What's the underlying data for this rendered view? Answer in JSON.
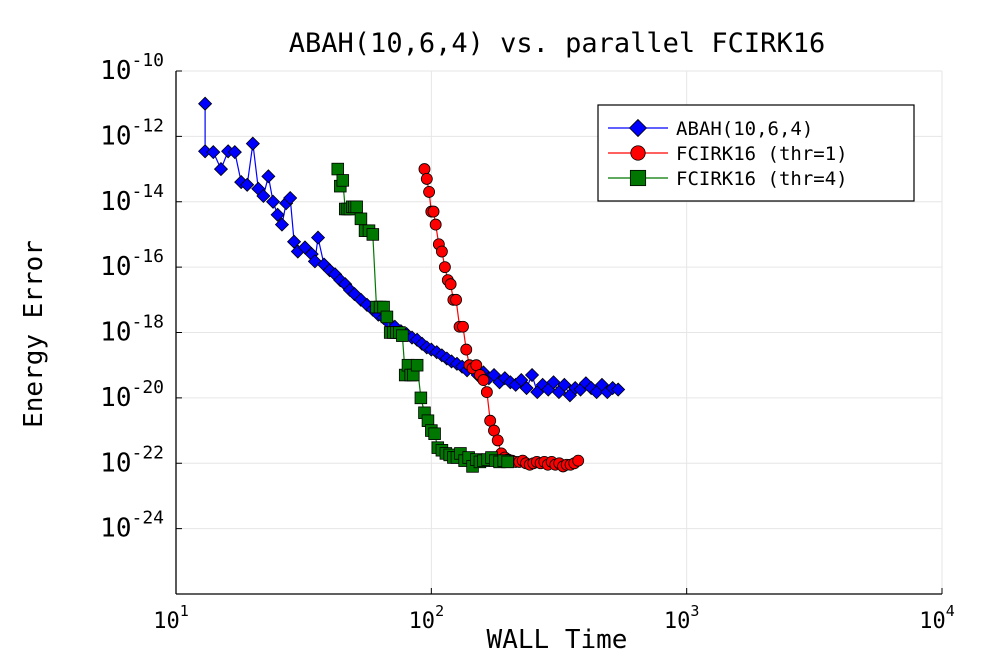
{
  "chart_data": {
    "type": "line",
    "title": "ABAH(10,6,4) vs. parallel FCIRK16",
    "xlabel": "WALL Time",
    "ylabel": "Energy Error",
    "xscale": "log",
    "yscale": "log",
    "xlim": [
      10,
      10000
    ],
    "ylim": [
      1e-26,
      1e-10
    ],
    "grid": true,
    "legend_position": "top-right",
    "x_ticks": [
      {
        "base": "10",
        "exp": "1",
        "value": 10
      },
      {
        "base": "10",
        "exp": "2",
        "value": 100
      },
      {
        "base": "10",
        "exp": "3",
        "value": 1000
      },
      {
        "base": "10",
        "exp": "4",
        "value": 10000
      }
    ],
    "y_ticks": [
      {
        "base": "10",
        "exp": "-10",
        "value": 1e-10
      },
      {
        "base": "10",
        "exp": "-12",
        "value": 1e-12
      },
      {
        "base": "10",
        "exp": "-14",
        "value": 1e-14
      },
      {
        "base": "10",
        "exp": "-16",
        "value": 1e-16
      },
      {
        "base": "10",
        "exp": "-18",
        "value": 1e-18
      },
      {
        "base": "10",
        "exp": "-20",
        "value": 1e-20
      },
      {
        "base": "10",
        "exp": "-22",
        "value": 1e-22
      },
      {
        "base": "10",
        "exp": "-24",
        "value": 1e-24
      }
    ],
    "series": [
      {
        "name": "ABAH(10,6,4)",
        "color": "#0000ff",
        "marker": "diamond",
        "x": [
          13,
          13,
          14,
          15,
          16,
          17,
          18,
          19,
          20,
          21,
          22,
          23,
          24,
          25,
          26,
          27,
          28,
          29,
          30,
          32,
          34,
          35,
          36,
          38,
          40,
          42,
          44,
          46,
          48,
          50,
          53,
          56,
          59,
          62,
          65,
          68,
          72,
          76,
          80,
          84,
          88,
          92,
          96,
          100,
          105,
          110,
          115,
          120,
          126,
          132,
          138,
          145,
          152,
          160,
          168,
          176,
          185,
          194,
          204,
          214,
          225,
          236,
          248,
          260,
          273,
          287,
          301,
          316,
          332,
          349,
          366,
          384,
          403,
          423,
          444,
          466,
          489,
          513,
          539
        ],
        "y": [
          1e-11,
          3.5e-13,
          3.3e-13,
          1e-13,
          3.5e-13,
          3.3e-13,
          4e-14,
          3.3e-14,
          6e-13,
          2.5e-14,
          1.5e-14,
          6e-14,
          1e-14,
          4e-15,
          2e-15,
          9e-15,
          1.3e-14,
          6e-16,
          3e-16,
          4e-16,
          2.5e-16,
          1.5e-16,
          8e-16,
          1.2e-16,
          8e-17,
          6e-17,
          4e-17,
          3e-17,
          2e-17,
          1.5e-17,
          1e-17,
          7e-18,
          5e-18,
          3.5e-18,
          2.8e-18,
          2e-18,
          1.5e-18,
          1.1e-18,
          9e-19,
          7e-19,
          6e-19,
          4.5e-19,
          3.5e-19,
          3e-19,
          2.5e-19,
          2e-19,
          1.6e-19,
          1.3e-19,
          1.1e-19,
          9e-20,
          7e-20,
          8e-20,
          5e-20,
          6e-20,
          4e-20,
          5e-20,
          3e-20,
          4e-20,
          3e-20,
          2.5e-20,
          3.5e-20,
          2e-20,
          5e-20,
          1.5e-20,
          2.5e-20,
          1.8e-20,
          3e-20,
          1.5e-20,
          2.5e-20,
          1.2e-20,
          2e-20,
          1.8e-20,
          2.8e-20,
          2e-20,
          1.5e-20,
          2.5e-20,
          1.5e-20,
          2e-20,
          1.8e-20
        ]
      },
      {
        "name": "FCIRK16 (thr=1)",
        "color": "#ff0000",
        "marker": "circle",
        "x": [
          94,
          96,
          98,
          100,
          102,
          104,
          107,
          110,
          113,
          116,
          119,
          122,
          125,
          129,
          133,
          137,
          141,
          145,
          150,
          155,
          160,
          165,
          170,
          176,
          182,
          188,
          194,
          200,
          207,
          214,
          221,
          228,
          235,
          243,
          251,
          259,
          268,
          277,
          286,
          296,
          306,
          317,
          328,
          339,
          351,
          363,
          376
        ],
        "y": [
          1e-13,
          5e-14,
          2e-14,
          5e-15,
          5e-15,
          2e-15,
          5e-16,
          3e-16,
          1e-16,
          4e-17,
          3e-17,
          1e-17,
          1e-17,
          1.5e-18,
          1.5e-18,
          3e-19,
          1e-19,
          8e-20,
          1e-19,
          5e-20,
          3.5e-20,
          1.5e-20,
          2e-21,
          1e-21,
          5e-22,
          2e-22,
          1.5e-22,
          1.3e-22,
          1.2e-22,
          1.1e-22,
          1.1e-22,
          1.2e-22,
          1e-22,
          9e-23,
          1e-22,
          1.1e-22,
          1e-22,
          1.1e-22,
          9e-23,
          1.1e-22,
          9e-23,
          1e-22,
          8e-23,
          9e-23,
          9e-23,
          1e-22,
          1.2e-22
        ]
      },
      {
        "name": "FCIRK16 (thr=4)",
        "color": "#007700",
        "marker": "square",
        "x": [
          43,
          44,
          45,
          46,
          47,
          48,
          49,
          50,
          51,
          53,
          55,
          57,
          59,
          61,
          63,
          65,
          67,
          69,
          71,
          73,
          75,
          77,
          79,
          81,
          83,
          85,
          88,
          91,
          94,
          97,
          100,
          103,
          106,
          110,
          114,
          118,
          122,
          126,
          130,
          135,
          140,
          145,
          150,
          155,
          160,
          166,
          172,
          178,
          185,
          192,
          199
        ],
        "y": [
          1e-13,
          3e-14,
          4.5e-14,
          6e-15,
          6e-15,
          6e-15,
          7e-15,
          7e-15,
          7e-15,
          3e-15,
          1.3e-15,
          1.3e-15,
          1e-15,
          6e-18,
          6e-18,
          6e-18,
          3e-18,
          1e-18,
          1e-18,
          1e-18,
          1e-18,
          8e-19,
          5e-20,
          1e-19,
          5e-20,
          5e-20,
          1e-19,
          1e-20,
          3.5e-21,
          2e-21,
          1e-21,
          8e-22,
          3e-22,
          2.5e-22,
          2e-22,
          1.8e-22,
          1.5e-22,
          1.5e-22,
          2e-22,
          1.2e-22,
          1.5e-22,
          8e-23,
          1.3e-22,
          1.1e-22,
          1.2e-22,
          1.3e-22,
          1.5e-22,
          1.2e-22,
          1.1e-22,
          1.2e-22,
          1.1e-22
        ]
      }
    ]
  }
}
